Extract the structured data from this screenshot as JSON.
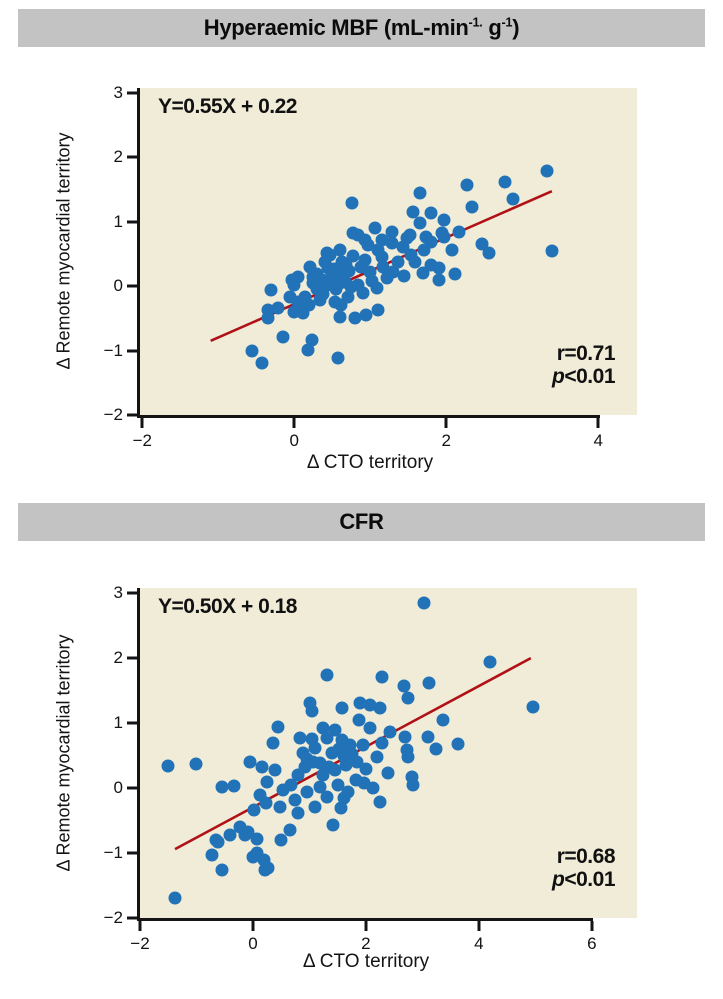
{
  "colors": {
    "panel_bar_bg": "#c3c3c3",
    "plot_bg": "#f0ecd8",
    "point": "#2272b8",
    "trend_line": "#b11116",
    "axis": "#141414",
    "text": "#111111"
  },
  "chart_data": [
    {
      "type": "scatter",
      "title_parts": {
        "prefix": "Hyperaemic MBF (mL-min",
        "sup1": "-1.",
        "mid": " g",
        "sup2": "-1",
        "suffix": ")"
      },
      "equation": "Y=0.55X + 0.22",
      "r_text": "r=0.71",
      "p_italic": "p",
      "p_rest": "<0.01",
      "xlabel": "Δ CTO territory",
      "ylabel": "Δ Remote myocardial territory",
      "xticks": [
        -2,
        0,
        2,
        4
      ],
      "xtick_labels": [
        "−2",
        "0",
        "2",
        "4"
      ],
      "yticks": [
        3,
        2,
        1,
        0,
        -1,
        -2
      ],
      "ytick_labels": [
        "3",
        "2",
        "1",
        "0",
        "−1",
        "−2"
      ],
      "xlim": [
        -2,
        4
      ],
      "ylim": [
        -2,
        3
      ],
      "xlim_render": [
        -2.03,
        4.51
      ],
      "ylim_render": [
        -2,
        3.07
      ],
      "legend": "none",
      "grid": false,
      "trendline": {
        "x1": -1.1,
        "y1": -0.85,
        "x2": 3.39,
        "y2": 1.47
      },
      "points": [
        [
          3.33,
          1.78
        ],
        [
          2.88,
          1.35
        ],
        [
          2.77,
          1.61
        ],
        [
          2.27,
          1.57
        ],
        [
          2.34,
          1.22
        ],
        [
          3.39,
          0.54
        ],
        [
          1.65,
          1.44
        ],
        [
          1.56,
          1.15
        ],
        [
          1.8,
          1.13
        ],
        [
          1.97,
          1.02
        ],
        [
          1.65,
          0.98
        ],
        [
          2.17,
          0.84
        ],
        [
          2.47,
          0.65
        ],
        [
          2.56,
          0.51
        ],
        [
          2.07,
          0.56
        ],
        [
          1.8,
          0.68
        ],
        [
          1.9,
          0.28
        ],
        [
          2.12,
          0.19
        ],
        [
          1.69,
          0.2
        ],
        [
          1.9,
          0.09
        ],
        [
          0.76,
          1.29
        ],
        [
          1.06,
          0.9
        ],
        [
          1.29,
          0.84
        ],
        [
          1.97,
          0.76
        ],
        [
          0.93,
          0.71
        ],
        [
          1.15,
          0.71
        ],
        [
          1.52,
          0.79
        ],
        [
          1.74,
          0.76
        ],
        [
          1.94,
          0.82
        ],
        [
          0.84,
          0.79
        ],
        [
          1.43,
          0.6
        ],
        [
          1.71,
          0.56
        ],
        [
          1.48,
          0.74
        ],
        [
          1.28,
          0.66
        ],
        [
          1.1,
          0.56
        ],
        [
          0.77,
          0.82
        ],
        [
          0.97,
          0.64
        ],
        [
          0.77,
          0.47
        ],
        [
          1.54,
          0.48
        ],
        [
          1.36,
          0.37
        ],
        [
          1.17,
          0.29
        ],
        [
          0.99,
          0.22
        ],
        [
          1.59,
          0.37
        ],
        [
          1.8,
          0.33
        ],
        [
          1.16,
          0.45
        ],
        [
          0.63,
          0.37
        ],
        [
          0.6,
          0.56
        ],
        [
          0.43,
          0.51
        ],
        [
          0.47,
          0.48
        ],
        [
          0.41,
          0.37
        ],
        [
          0.21,
          0.29
        ],
        [
          0.93,
          0.4
        ],
        [
          0.68,
          0.33
        ],
        [
          0.52,
          0.26
        ],
        [
          0.05,
          0.14
        ],
        [
          0.25,
          0.14
        ],
        [
          0.25,
          0.05
        ],
        [
          0.43,
          0.02
        ],
        [
          0.6,
          0.05
        ],
        [
          0.47,
          0.09
        ],
        [
          0.67,
          0.06
        ],
        [
          0.84,
          0.02
        ],
        [
          0.0,
          0.02
        ],
        [
          -0.03,
          0.09
        ],
        [
          -0.3,
          -0.06
        ],
        [
          0.3,
          0.18
        ],
        [
          0.36,
          0.1
        ],
        [
          0.5,
          0.17
        ],
        [
          0.57,
          0.22
        ],
        [
          0.44,
          0.28
        ],
        [
          0.65,
          0.15
        ],
        [
          0.72,
          0.24
        ],
        [
          0.88,
          0.3
        ],
        [
          1.02,
          0.08
        ],
        [
          1.22,
          0.12
        ],
        [
          1.3,
          0.22
        ],
        [
          1.45,
          0.15
        ],
        [
          -0.21,
          -0.34
        ],
        [
          -0.35,
          -0.37
        ],
        [
          -0.34,
          -0.5
        ],
        [
          -0.01,
          -0.4
        ],
        [
          0.12,
          -0.42
        ],
        [
          -0.05,
          -0.17
        ],
        [
          0.14,
          -0.17
        ],
        [
          0.34,
          -0.22
        ],
        [
          0.54,
          -0.25
        ],
        [
          0.71,
          -0.17
        ],
        [
          0.9,
          -0.11
        ],
        [
          1.09,
          -0.03
        ],
        [
          0.3,
          -0.05
        ],
        [
          0.38,
          -0.12
        ],
        [
          0.55,
          -0.05
        ],
        [
          0.2,
          -0.3
        ],
        [
          0.05,
          -0.25
        ],
        [
          0.62,
          -0.3
        ],
        [
          0.75,
          -0.02
        ],
        [
          0.6,
          -0.48
        ],
        [
          0.8,
          -0.5
        ],
        [
          0.95,
          -0.45
        ],
        [
          1.1,
          -0.37
        ],
        [
          -0.15,
          -0.79
        ],
        [
          0.23,
          -0.84
        ],
        [
          0.18,
          -0.99
        ],
        [
          0.58,
          -1.11
        ],
        [
          -0.55,
          -1.0
        ],
        [
          -0.42,
          -1.19
        ]
      ]
    },
    {
      "type": "scatter",
      "title_parts": {
        "prefix": "CFR",
        "sup1": "",
        "mid": "",
        "sup2": "",
        "suffix": ""
      },
      "equation": "Y=0.50X + 0.18",
      "r_text": "r=0.68",
      "p_italic": "p",
      "p_rest": "<0.01",
      "xlabel": "Δ CTO territory",
      "ylabel": "Δ Remote myocardial territory",
      "xticks": [
        -2,
        0,
        2,
        4,
        6
      ],
      "xtick_labels": [
        "−2",
        "0",
        "2",
        "4",
        "6"
      ],
      "yticks": [
        3,
        2,
        1,
        0,
        -1,
        -2
      ],
      "ytick_labels": [
        "3",
        "2",
        "1",
        "0",
        "−1",
        "−2"
      ],
      "xlim": [
        -2,
        6
      ],
      "ylim": [
        -2,
        3
      ],
      "xlim_render": [
        -2.0,
        6.8
      ],
      "ylim_render": [
        -2,
        3.08
      ],
      "legend": "none",
      "grid": false,
      "trendline": {
        "x1": -1.38,
        "y1": -0.94,
        "x2": 4.92,
        "y2": 2.0
      },
      "points": [
        [
          3.03,
          2.85
        ],
        [
          1.31,
          1.74
        ],
        [
          2.28,
          1.71
        ],
        [
          2.67,
          1.57
        ],
        [
          4.19,
          1.94
        ],
        [
          4.96,
          1.25
        ],
        [
          3.12,
          1.62
        ],
        [
          2.74,
          1.38
        ],
        [
          1.01,
          1.31
        ],
        [
          1.04,
          1.18
        ],
        [
          1.57,
          1.23
        ],
        [
          1.89,
          1.31
        ],
        [
          2.07,
          1.28
        ],
        [
          2.25,
          1.23
        ],
        [
          3.36,
          1.05
        ],
        [
          1.88,
          1.05
        ],
        [
          0.44,
          0.94
        ],
        [
          1.24,
          0.92
        ],
        [
          1.45,
          0.89
        ],
        [
          2.07,
          0.92
        ],
        [
          0.35,
          0.69
        ],
        [
          0.83,
          0.77
        ],
        [
          1.31,
          0.77
        ],
        [
          1.57,
          0.74
        ],
        [
          1.72,
          0.66
        ],
        [
          1.95,
          0.66
        ],
        [
          2.28,
          0.69
        ],
        [
          2.42,
          0.86
        ],
        [
          2.69,
          0.78
        ],
        [
          3.1,
          0.78
        ],
        [
          3.63,
          0.68
        ],
        [
          0.88,
          0.54
        ],
        [
          1.19,
          0.38
        ],
        [
          1.4,
          0.54
        ],
        [
          1.61,
          0.49
        ],
        [
          1.84,
          0.4
        ],
        [
          2.19,
          0.48
        ],
        [
          2.73,
          0.58
        ],
        [
          2.74,
          0.48
        ],
        [
          3.24,
          0.6
        ],
        [
          -0.05,
          0.4
        ],
        [
          -1.0,
          0.37
        ],
        [
          -1.5,
          0.34
        ],
        [
          2.39,
          0.23
        ],
        [
          2.81,
          0.17
        ],
        [
          0.16,
          0.32
        ],
        [
          0.39,
          0.28
        ],
        [
          0.25,
          0.09
        ],
        [
          0.12,
          -0.11
        ],
        [
          0.23,
          -0.23
        ],
        [
          0.02,
          -0.34
        ],
        [
          0.53,
          -0.03
        ],
        [
          0.67,
          0.05
        ],
        [
          0.8,
          0.2
        ],
        [
          0.92,
          0.32
        ],
        [
          1.06,
          0.4
        ],
        [
          0.48,
          -0.29
        ],
        [
          0.74,
          -0.18
        ],
        [
          0.96,
          -0.06
        ],
        [
          1.19,
          0.02
        ],
        [
          1.24,
          0.2
        ],
        [
          1.45,
          0.28
        ],
        [
          1.31,
          -0.14
        ],
        [
          1.1,
          -0.29
        ],
        [
          0.8,
          -0.38
        ],
        [
          -0.55,
          0.02
        ],
        [
          -0.34,
          0.03
        ],
        [
          1.56,
          -0.31
        ],
        [
          1.68,
          -0.06
        ],
        [
          1.82,
          0.12
        ],
        [
          1.96,
          0.08
        ],
        [
          2.12,
          0.0
        ],
        [
          2.25,
          -0.22
        ],
        [
          2.83,
          0.05
        ],
        [
          1.42,
          -0.57
        ],
        [
          0.65,
          -0.65
        ],
        [
          0.5,
          -0.8
        ],
        [
          0.07,
          -0.78
        ],
        [
          -0.09,
          -0.68
        ],
        [
          -0.23,
          -0.6
        ],
        [
          -0.41,
          -0.72
        ],
        [
          -0.65,
          -0.8
        ],
        [
          -0.73,
          -1.03
        ],
        [
          -0.55,
          -1.26
        ],
        [
          0.19,
          -1.11
        ],
        [
          0.27,
          -1.23
        ],
        [
          0.0,
          -1.06
        ],
        [
          -0.62,
          -0.83
        ],
        [
          -0.14,
          -0.72
        ],
        [
          0.07,
          -1.0
        ],
        [
          0.21,
          -1.26
        ],
        [
          -1.38,
          -1.69
        ],
        [
          1.1,
          0.62
        ],
        [
          0.95,
          0.45
        ],
        [
          1.52,
          0.6
        ],
        [
          1.65,
          0.35
        ],
        [
          1.35,
          0.33
        ],
        [
          1.05,
          0.75
        ],
        [
          1.75,
          0.52
        ],
        [
          2.0,
          0.3
        ],
        [
          1.5,
          0.05
        ],
        [
          1.62,
          -0.15
        ]
      ]
    }
  ]
}
